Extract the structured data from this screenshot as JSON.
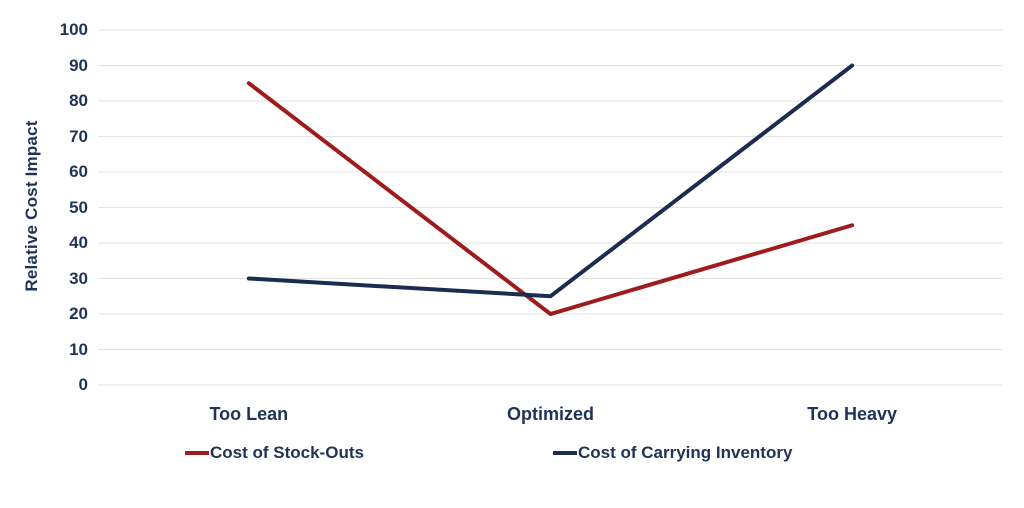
{
  "chart_data": {
    "type": "line",
    "categories": [
      "Too Lean",
      "Optimized",
      "Too Heavy"
    ],
    "series": [
      {
        "name": "Cost of Stock-Outs",
        "values": [
          85,
          20,
          45
        ],
        "color": "#9E1B1E"
      },
      {
        "name": "Cost of Carrying Inventory",
        "values": [
          30,
          25,
          90
        ],
        "color": "#1B2C50"
      }
    ],
    "ylabel": "Relative Cost Impact",
    "ylim": [
      0,
      100
    ],
    "ytick_step": 10,
    "grid": true,
    "legend_position": "bottom",
    "axis_text_color": "#1F3356",
    "gridline_color": "#E3E3E3"
  }
}
